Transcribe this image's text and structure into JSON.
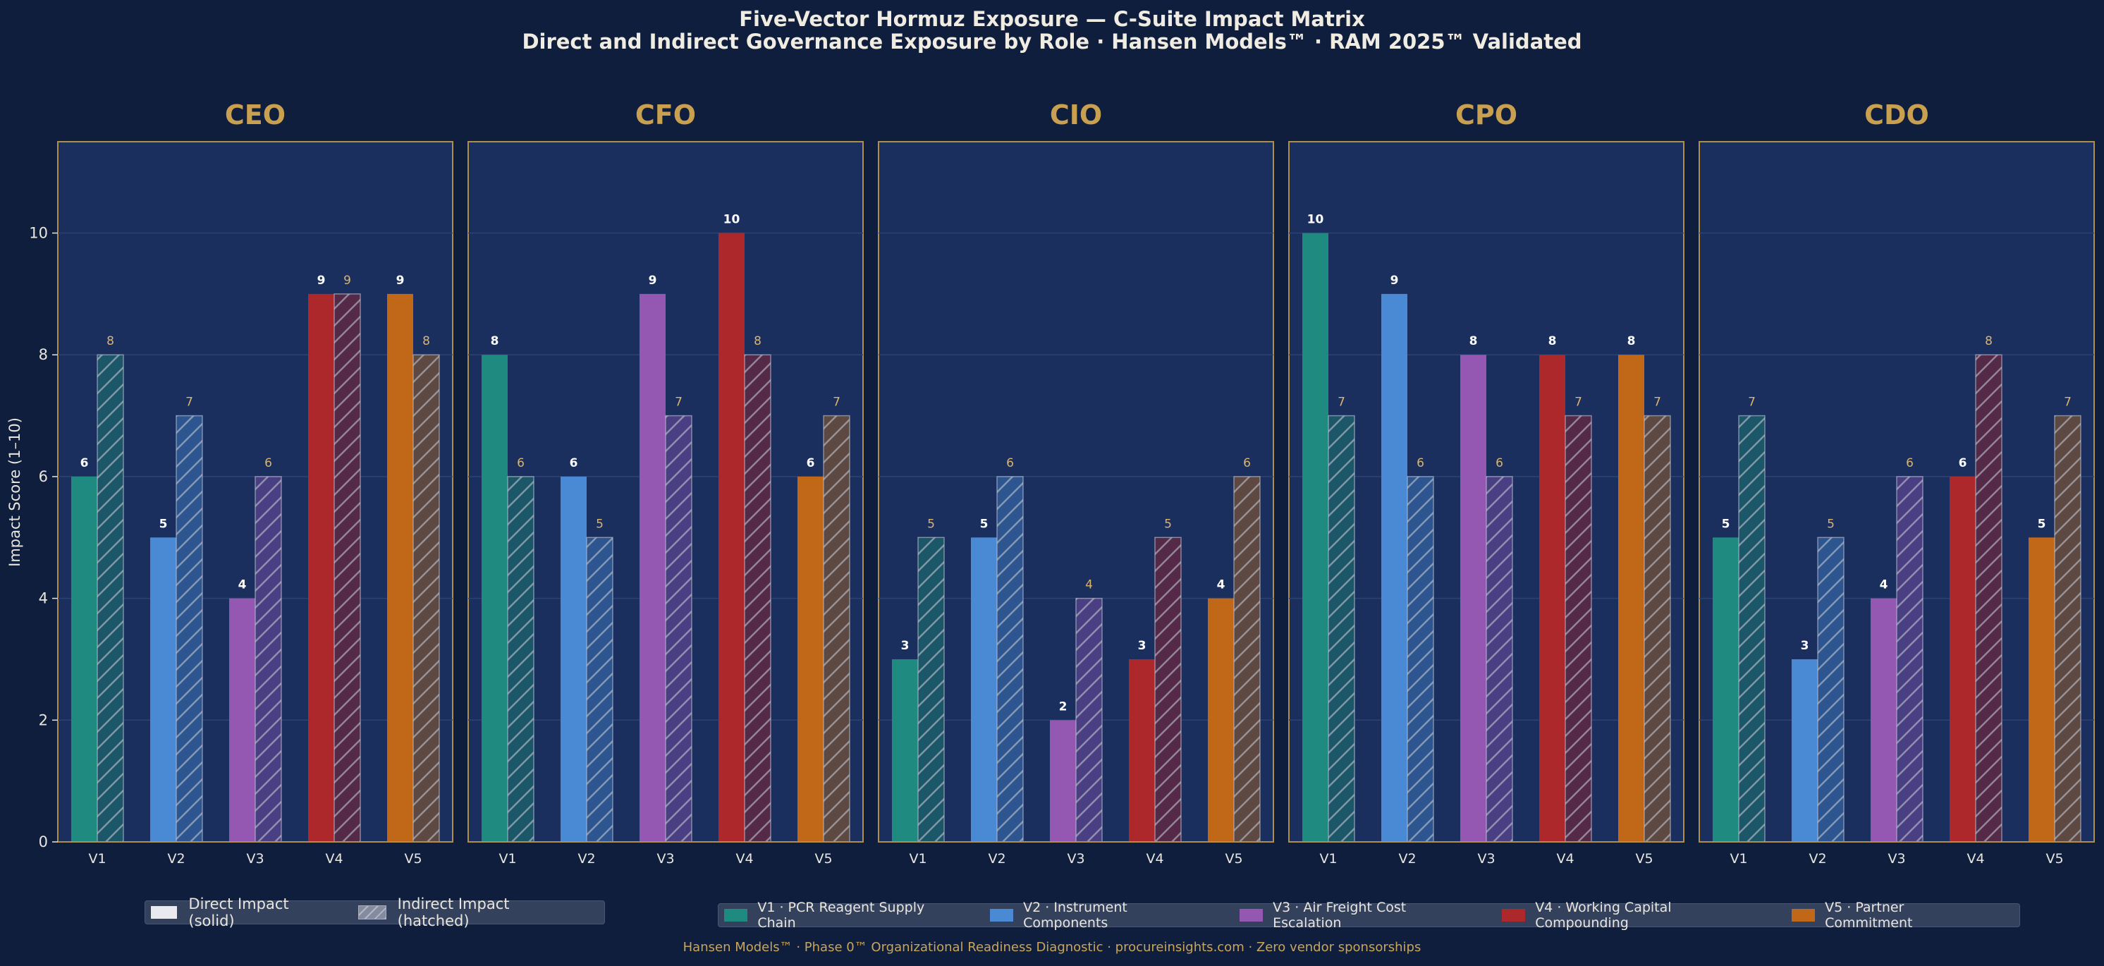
{
  "header": {
    "title": "Five-Vector Hormuz Exposure — C-Suite Impact Matrix",
    "subtitle": "Direct and Indirect Governance Exposure by Role  ·  Hansen Models™  ·  RAM 2025™ Validated"
  },
  "legend_type": {
    "direct_label": "Direct Impact (solid)",
    "indirect_label": "Indirect Impact (hatched)"
  },
  "legend_vectors": [
    {
      "label": "V1 · PCR Reagent Supply Chain",
      "color": "#1e8a80"
    },
    {
      "label": "V2 · Instrument Components",
      "color": "#4a8ad4"
    },
    {
      "label": "V3 · Air Freight Cost Escalation",
      "color": "#9558b2"
    },
    {
      "label": "V4 · Working Capital Compounding",
      "color": "#ad282b"
    },
    {
      "label": "V5 · Partner Commitment",
      "color": "#c06718"
    }
  ],
  "footer": "Hansen Models™  ·  Phase 0™ Organizational Readiness Diagnostic  ·  procureinsights.com  ·  Zero vendor sponsorships",
  "colors": {
    "background": "#0f1e3d",
    "panel": "#1b2f5e",
    "panel_border": "#b08f4e",
    "panel_title": "#c9a04f",
    "direct_label": "#ffffff",
    "indirect_label": "#d9b46a",
    "hatched_fill": [
      "#1c5669",
      "#2d5690",
      "#4a3f82",
      "#542a48",
      "#5d4842"
    ]
  },
  "chart_data": {
    "type": "bar",
    "ylabel": "Impact Score  (1–10)",
    "ylim": [
      0,
      11.5
    ],
    "yticks": [
      0,
      2,
      4,
      6,
      8,
      10
    ],
    "grid": true,
    "categories": [
      "V1",
      "V2",
      "V3",
      "V4",
      "V5"
    ],
    "panels": [
      {
        "title": "CEO",
        "direct": [
          6,
          5,
          4,
          9,
          9
        ],
        "indirect": [
          8,
          7,
          6,
          9,
          8
        ]
      },
      {
        "title": "CFO",
        "direct": [
          8,
          6,
          9,
          10,
          6
        ],
        "indirect": [
          6,
          5,
          7,
          8,
          7
        ]
      },
      {
        "title": "CIO",
        "direct": [
          3,
          5,
          2,
          3,
          4
        ],
        "indirect": [
          5,
          6,
          4,
          5,
          6
        ]
      },
      {
        "title": "CPO",
        "direct": [
          10,
          9,
          8,
          8,
          8
        ],
        "indirect": [
          7,
          6,
          6,
          7,
          7
        ]
      },
      {
        "title": "CDO",
        "direct": [
          5,
          3,
          4,
          6,
          5
        ],
        "indirect": [
          7,
          5,
          6,
          8,
          7
        ]
      }
    ],
    "legend": [
      "Direct Impact (solid)",
      "Indirect Impact (hatched)"
    ],
    "legend_position": "bottom"
  }
}
